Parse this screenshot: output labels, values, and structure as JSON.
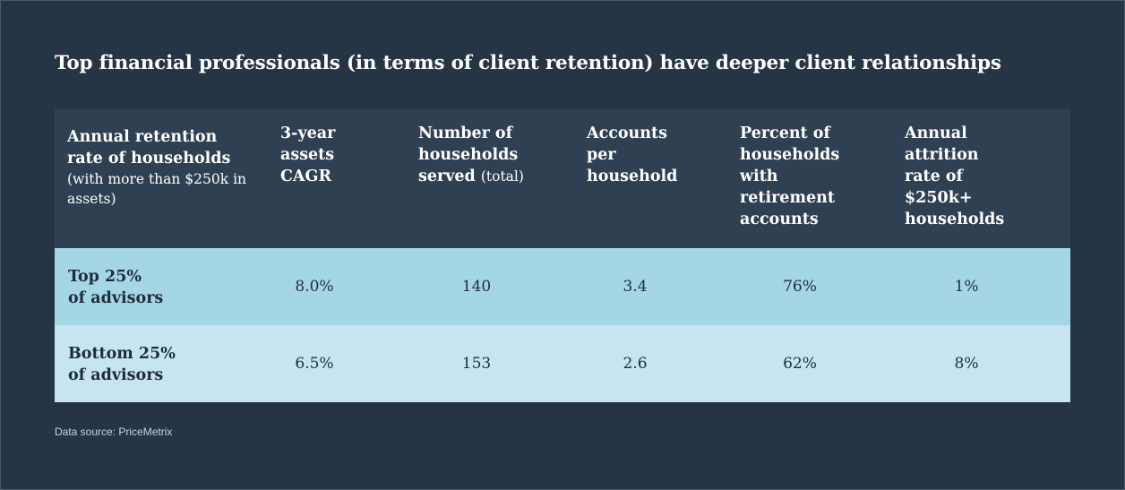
{
  "title": "Top financial professionals (in terms of client retention) have deeper client relationships",
  "source": "Data source: PriceMetrix",
  "colors": {
    "background": "#263545",
    "header_bg": "#2f4052",
    "row_top": "#a5d6e6",
    "row_bottom": "#c6e5f1",
    "text_dark": "#1f2d3b"
  },
  "chart_data": {
    "type": "table",
    "title": "Top financial professionals (in terms of client retention) have deeper client relationships",
    "columns": [
      {
        "main": [
          "Annual retention",
          "rate of households"
        ],
        "sub": "(with more than $250k in assets)"
      },
      {
        "main": [
          "3-year",
          "assets",
          "CAGR"
        ],
        "sub": ""
      },
      {
        "main": [
          "Number of",
          "households",
          "served"
        ],
        "sub": "(total)"
      },
      {
        "main": [
          "Accounts",
          "per",
          "household"
        ],
        "sub": ""
      },
      {
        "main": [
          "Percent of",
          "households",
          "with",
          "retirement",
          "accounts"
        ],
        "sub": ""
      },
      {
        "main": [
          "Annual",
          "attrition",
          "rate of",
          "$250k+",
          "households"
        ],
        "sub": ""
      }
    ],
    "rows": [
      {
        "label": [
          "Top 25%",
          "of advisors"
        ],
        "values": [
          "8.0%",
          "140",
          "3.4",
          "76%",
          "1%"
        ]
      },
      {
        "label": [
          "Bottom 25%",
          "of advisors"
        ],
        "values": [
          "6.5%",
          "153",
          "2.6",
          "62%",
          "8%"
        ]
      }
    ],
    "source": "Data source: PriceMetrix"
  }
}
